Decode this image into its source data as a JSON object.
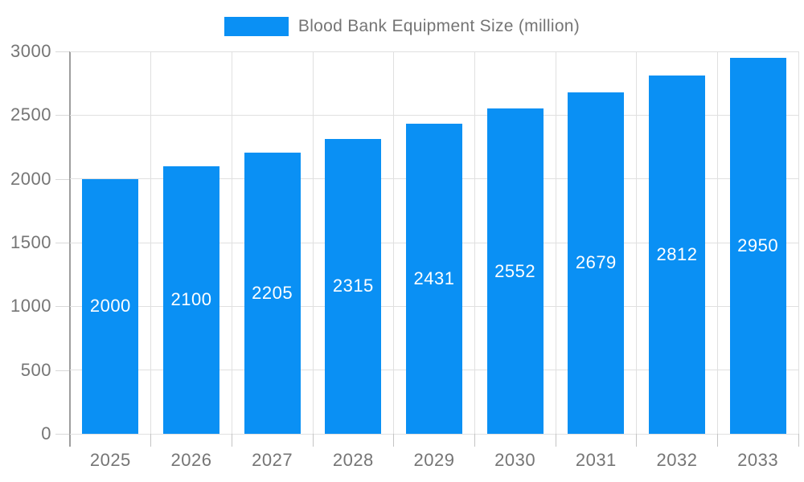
{
  "legend": {
    "label": "Blood Bank Equipment Size (million)"
  },
  "chart_data": {
    "type": "bar",
    "title": "Blood Bank Equipment Size (million)",
    "legend_entries": [
      "Blood Bank Equipment Size (million)"
    ],
    "legend_position": "top-center",
    "categories": [
      "2025",
      "2026",
      "2027",
      "2028",
      "2029",
      "2030",
      "2031",
      "2032",
      "2033"
    ],
    "values": [
      2000,
      2100,
      2205,
      2315,
      2431,
      2552,
      2679,
      2812,
      2950
    ],
    "xlabel": "",
    "ylabel": "",
    "ylim": [
      0,
      3000
    ],
    "yticks": [
      0,
      500,
      1000,
      1500,
      2000,
      2500,
      3000
    ],
    "grid": true,
    "value_label_placement": "inside-center"
  },
  "colors": {
    "bar": "#0a90f4",
    "grid": "#e0e0e0",
    "axis_line": "#9e9e9e",
    "tick": "#c4c4c4",
    "label_text": "#757575",
    "value_text": "#ffffff",
    "background": "#ffffff"
  }
}
